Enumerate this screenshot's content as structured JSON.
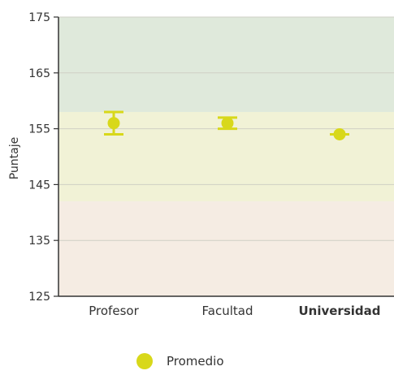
{
  "chart_data": {
    "type": "scatter",
    "ylabel": "Puntaje",
    "ylim": [
      125,
      175
    ],
    "yticks": [
      125,
      135,
      145,
      155,
      165,
      175
    ],
    "categories": [
      "Profesor",
      "Facultad",
      "Universidad"
    ],
    "emphasized_category": "Universidad",
    "bands": [
      {
        "from": 125,
        "to": 142,
        "color": "#f5ece3"
      },
      {
        "from": 142,
        "to": 158,
        "color": "#f1f2d6"
      },
      {
        "from": 158,
        "to": 175,
        "color": "#dfe9db"
      }
    ],
    "series": [
      {
        "name": "Promedio",
        "color": "#d8d81a",
        "values": [
          156,
          156,
          154
        ],
        "error_low": [
          154,
          155,
          154
        ],
        "error_high": [
          158,
          157,
          154
        ]
      }
    ],
    "grid": true,
    "legend": "bottom-center"
  }
}
